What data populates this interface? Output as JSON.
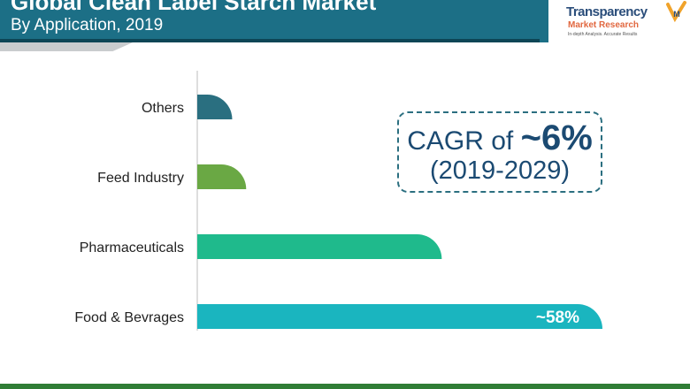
{
  "header": {
    "title": "Global Clean Label Starch Market",
    "subtitle": "By Application, 2019"
  },
  "logo": {
    "name": "Transparency",
    "sub": "Market Research",
    "tagline": "In-depth Analysis. Accurate Results",
    "mark": "M"
  },
  "cagr": {
    "prefix": "CAGR of ",
    "value": "~6%",
    "period": "(2019-2029)"
  },
  "chart_data": {
    "type": "bar",
    "orientation": "horizontal",
    "title": "Global Clean Label Starch Market",
    "subtitle": "By Application, 2019",
    "categories": [
      "Others",
      "Feed Industry",
      "Pharmaceuticals",
      "Food & Bevrages"
    ],
    "values": [
      5,
      7,
      35,
      58
    ],
    "unit": "%",
    "data_labels": [
      "",
      "",
      "",
      "~58%"
    ],
    "colors": [
      "#2a6f80",
      "#6aa844",
      "#1fba8c",
      "#1ab5bf"
    ],
    "xlim": [
      0,
      58
    ]
  }
}
